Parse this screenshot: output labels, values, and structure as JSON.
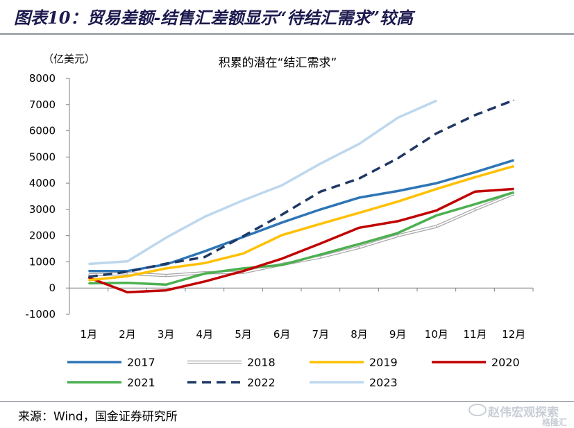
{
  "header": {
    "figure_title": "图表10：贸易差额-结售汇差额显示“待结汇需求”较高"
  },
  "footer": {
    "source": "来源：Wind，国金证券研究所"
  },
  "watermark": {
    "line1": "赵伟宏观探索",
    "line2": "格隆汇"
  },
  "chart_data": {
    "type": "line",
    "title": "积累的潜在“结汇需求”",
    "ylabel": "（亿美元）",
    "xlabel": "",
    "categories": [
      "1月",
      "2月",
      "3月",
      "4月",
      "5月",
      "6月",
      "7月",
      "8月",
      "9月",
      "10月",
      "11月",
      "12月"
    ],
    "ylim": [
      -1000,
      8000
    ],
    "yticks": [
      -1000,
      0,
      1000,
      2000,
      3000,
      4000,
      5000,
      6000,
      7000,
      8000
    ],
    "grid": false,
    "legend_position": "bottom",
    "series": [
      {
        "name": "2017",
        "color": "#2e75b6",
        "style": "solid",
        "values": [
          650,
          650,
          900,
          1400,
          1950,
          2500,
          3000,
          3450,
          3700,
          4000,
          4420,
          4880
        ]
      },
      {
        "name": "2018",
        "color": "#a6a6a6",
        "style": "double",
        "values": [
          500,
          550,
          480,
          580,
          600,
          900,
          1180,
          1550,
          2000,
          2350,
          3000,
          3600
        ]
      },
      {
        "name": "2019",
        "color": "#ffc000",
        "style": "solid",
        "values": [
          300,
          450,
          750,
          950,
          1320,
          2020,
          2450,
          2870,
          3300,
          3780,
          4230,
          4650
        ]
      },
      {
        "name": "2020",
        "color": "#c00000",
        "style": "solid",
        "values": [
          400,
          -160,
          -90,
          250,
          650,
          1120,
          1700,
          2300,
          2550,
          2960,
          3680,
          3780
        ]
      },
      {
        "name": "2021",
        "color": "#4cb050",
        "style": "solid",
        "values": [
          180,
          200,
          130,
          550,
          750,
          880,
          1280,
          1680,
          2100,
          2770,
          3200,
          3650
        ]
      },
      {
        "name": "2022",
        "color": "#1f3864",
        "style": "dashed",
        "values": [
          430,
          620,
          930,
          1180,
          1980,
          2800,
          3680,
          4180,
          4950,
          5900,
          6600,
          7170
        ]
      },
      {
        "name": "2023",
        "color": "#bdd7ee",
        "style": "solid",
        "values": [
          920,
          1020,
          1920,
          2720,
          3350,
          3920,
          4750,
          5500,
          6500,
          7150,
          null,
          null
        ]
      }
    ]
  }
}
